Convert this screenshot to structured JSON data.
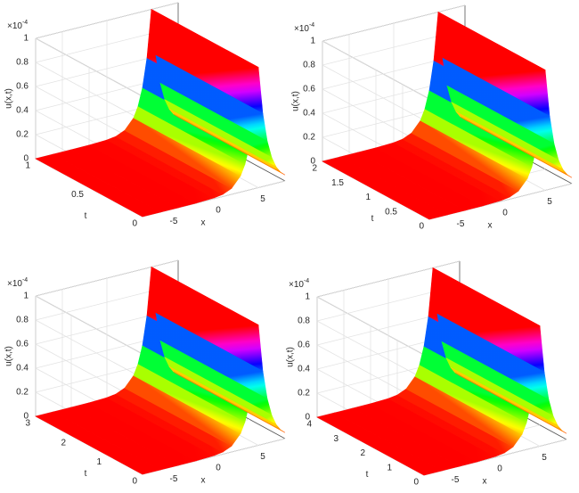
{
  "chart_data": [
    {
      "type": "surface",
      "xlabel": "x",
      "ylabel": "t",
      "zlabel": "u(x,t)",
      "z_multiplier": "×10",
      "z_exponent": "-4",
      "colormap": "hsv",
      "x": [
        -8,
        -6,
        -4,
        -2,
        0,
        1,
        2,
        3,
        3.5,
        4,
        4.5,
        5,
        5.5,
        6,
        6.5,
        7,
        7.5,
        8
      ],
      "values": [
        0,
        0,
        0,
        0.001,
        0.007,
        0.018,
        0.05,
        0.135,
        0.223,
        0.368,
        0.607,
        1,
        0.607,
        0.368,
        0.223,
        0.135,
        0.082,
        0.05
      ],
      "xlim": [
        -8,
        8
      ],
      "xticks": [
        -5,
        0,
        5
      ],
      "tlim": [
        0,
        1
      ],
      "tticks": [
        0,
        0.5,
        1
      ],
      "zlim": [
        0,
        1
      ],
      "zticks": [
        0,
        0.2,
        0.4,
        0.6,
        0.8,
        1
      ],
      "grid": true
    },
    {
      "type": "surface",
      "xlabel": "x",
      "ylabel": "t",
      "zlabel": "u(x,t)",
      "z_multiplier": "×10",
      "z_exponent": "-4",
      "colormap": "hsv",
      "x": [
        -8,
        -6,
        -4,
        -2,
        0,
        1,
        2,
        3,
        3.5,
        4,
        4.5,
        5,
        5.5,
        6,
        6.5,
        7,
        7.5,
        8
      ],
      "values": [
        0,
        0,
        0,
        0.001,
        0.007,
        0.018,
        0.05,
        0.135,
        0.223,
        0.368,
        0.607,
        1,
        0.607,
        0.368,
        0.223,
        0.135,
        0.082,
        0.05
      ],
      "xlim": [
        -8,
        8
      ],
      "xticks": [
        -5,
        0,
        5
      ],
      "tlim": [
        0,
        2
      ],
      "tticks": [
        0,
        0.5,
        1,
        1.5,
        2
      ],
      "zlim": [
        0,
        1
      ],
      "zticks": [
        0,
        0.2,
        0.4,
        0.6,
        0.8,
        1
      ],
      "grid": true
    },
    {
      "type": "surface",
      "xlabel": "x",
      "ylabel": "t",
      "zlabel": "u(x,t)",
      "z_multiplier": "×10",
      "z_exponent": "-4",
      "colormap": "hsv",
      "x": [
        -8,
        -6,
        -4,
        -2,
        0,
        1,
        2,
        3,
        3.5,
        4,
        4.5,
        5,
        5.5,
        6,
        6.5,
        7,
        7.5,
        8
      ],
      "values": [
        0,
        0,
        0,
        0.001,
        0.007,
        0.018,
        0.05,
        0.135,
        0.223,
        0.368,
        0.607,
        1,
        0.607,
        0.368,
        0.223,
        0.135,
        0.082,
        0.05
      ],
      "xlim": [
        -8,
        8
      ],
      "xticks": [
        -5,
        0,
        5
      ],
      "tlim": [
        0,
        3
      ],
      "tticks": [
        0,
        1,
        2,
        3
      ],
      "zlim": [
        0,
        1
      ],
      "zticks": [
        0,
        0.2,
        0.4,
        0.6,
        0.8,
        1
      ],
      "grid": true
    },
    {
      "type": "surface",
      "xlabel": "x",
      "ylabel": "t",
      "zlabel": "u(x,t)",
      "z_multiplier": "×10",
      "z_exponent": "-4",
      "colormap": "hsv",
      "x": [
        -8,
        -6,
        -4,
        -2,
        0,
        1,
        2,
        3,
        3.5,
        4,
        4.5,
        5,
        5.5,
        6,
        6.5,
        7,
        7.5,
        8
      ],
      "values": [
        0,
        0,
        0,
        0.001,
        0.007,
        0.018,
        0.05,
        0.135,
        0.223,
        0.368,
        0.607,
        1,
        0.607,
        0.368,
        0.223,
        0.135,
        0.082,
        0.05
      ],
      "xlim": [
        -8,
        8
      ],
      "xticks": [
        -5,
        0,
        5
      ],
      "tlim": [
        0,
        4
      ],
      "tticks": [
        0,
        1,
        2,
        3,
        4
      ],
      "zlim": [
        0,
        1
      ],
      "zticks": [
        0,
        0.2,
        0.4,
        0.6,
        0.8,
        1
      ],
      "grid": true
    }
  ]
}
